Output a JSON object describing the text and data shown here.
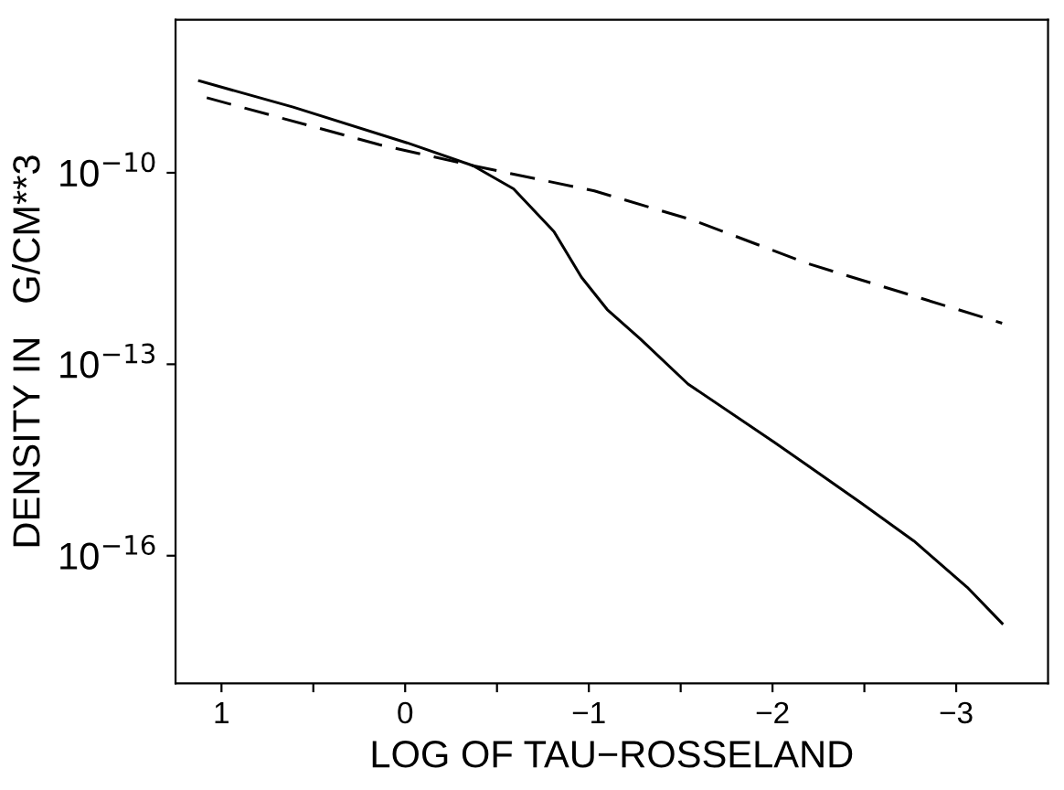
{
  "chart_data": {
    "type": "line",
    "xlabel": "LOG OF TAU−ROSSELAND",
    "ylabel": "DENSITY IN   G/CM**3",
    "log": "y",
    "grid": false,
    "marker": "none",
    "xlim": [
      1.25,
      -3.5
    ],
    "ylim": [
      1e-18,
      2.5e-08
    ],
    "xticks": [
      {
        "value": 1,
        "label": "1"
      },
      {
        "value": 0.5,
        "label": null
      },
      {
        "value": 0,
        "label": "0"
      },
      {
        "value": -0.5,
        "label": null
      },
      {
        "value": -1,
        "label": "−1"
      },
      {
        "value": -1.5,
        "label": null
      },
      {
        "value": -2,
        "label": "−2"
      },
      {
        "value": -2.5,
        "label": null
      },
      {
        "value": -3,
        "label": "−3"
      }
    ],
    "yticks": [
      {
        "value": 1e-10,
        "label": "10$^{−10}$"
      },
      {
        "value": 1e-13,
        "label": "10$^{−13}$"
      },
      {
        "value": 1e-16,
        "label": "10$^{−16}$"
      }
    ],
    "series": [
      {
        "color": "#000000",
        "line_style": "solid",
        "x": [
          1.12,
          0.61,
          -0.01,
          -0.37,
          -0.59,
          -0.81,
          -0.96,
          -1.1,
          -1.28,
          -1.54,
          -2.01,
          -2.48,
          -2.77,
          -3.06,
          -3.25
        ],
        "values": [
          2.75e-09,
          1.07e-09,
          2.95e-10,
          1.29e-10,
          5.6e-11,
          1.2e-11,
          2.3e-12,
          7.2e-13,
          2.5e-13,
          4.9e-14,
          6e-15,
          6.8e-16,
          1.7e-16,
          3.2e-17,
          8.7e-18
        ]
      },
      {
        "color": "#000000",
        "line_style": "dashed",
        "x": [
          1.08,
          0.14,
          -0.37,
          -1.03,
          -1.57,
          -2.19,
          -3.25
        ],
        "values": [
          1.5e-09,
          2.75e-10,
          1.29e-10,
          5.2e-11,
          1.8e-11,
          3.8e-12,
          4.4e-13
        ]
      }
    ]
  }
}
